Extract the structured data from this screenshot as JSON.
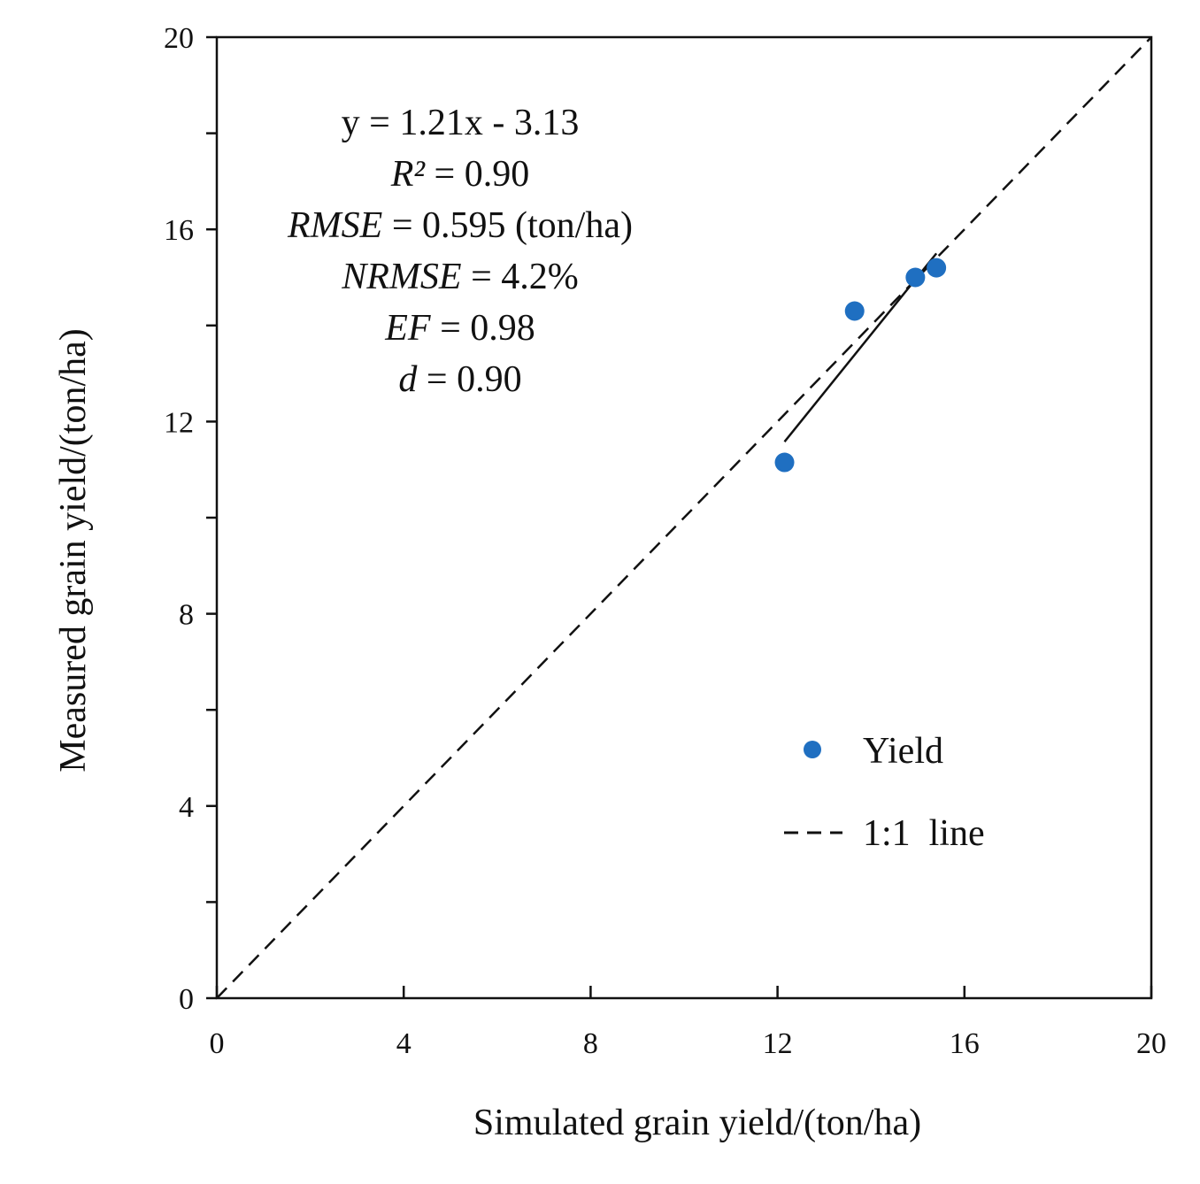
{
  "chart_data": {
    "type": "scatter",
    "xlabel": "Simulated grain yield/(ton/ha)",
    "ylabel": "Measured grain yield/(ton/ha)",
    "xlim": [
      0,
      20
    ],
    "ylim": [
      0,
      20
    ],
    "xticks": [
      0,
      4,
      8,
      12,
      16,
      20
    ],
    "yticks": [
      0,
      4,
      8,
      12,
      16,
      20
    ],
    "xtick_labels": [
      "0",
      "4",
      "8",
      "12",
      "16",
      "20"
    ],
    "ytick_labels": [
      "0",
      "4",
      "8",
      "12",
      "16",
      "20"
    ],
    "grid": false,
    "series": [
      {
        "name": "Yield",
        "color": "#1f6fc1",
        "points": [
          {
            "x": 12.15,
            "y": 11.15
          },
          {
            "x": 13.65,
            "y": 14.3
          },
          {
            "x": 14.95,
            "y": 15.0
          },
          {
            "x": 15.4,
            "y": 15.2
          }
        ]
      }
    ],
    "reference_line": {
      "name": "1:1  line",
      "style": "dashed",
      "from": [
        0,
        0
      ],
      "to": [
        20,
        20
      ]
    },
    "regression_line": {
      "style": "solid",
      "from": [
        12.15,
        11.58
      ],
      "to": [
        15.4,
        15.5
      ]
    },
    "annotations": [
      {
        "text": "y = 1.21x - 3.13"
      },
      {
        "italic": "R²",
        "rest": " = 0.90"
      },
      {
        "italic": "RMSE",
        "rest": " = 0.595 (ton/ha)"
      },
      {
        "italic": "NRMSE",
        "rest": " = 4.2%"
      },
      {
        "italic": "EF",
        "rest": " = 0.98"
      },
      {
        "italic": "d",
        "rest": " = 0.90"
      }
    ],
    "legend": {
      "placement": "bottom-right",
      "entries": [
        {
          "label": "Yield",
          "marker": "dot"
        },
        {
          "label": "1:1  line",
          "marker": "dashed-line"
        }
      ]
    }
  }
}
